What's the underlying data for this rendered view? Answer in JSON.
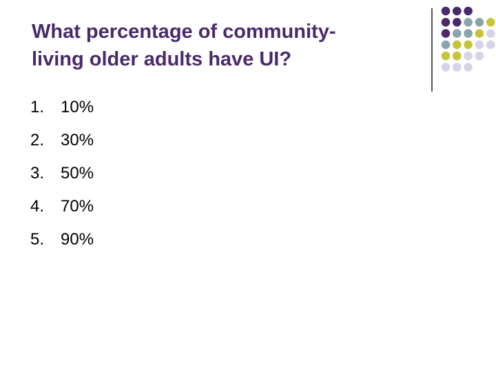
{
  "slide": {
    "title_lines": [
      "What percentage of community-",
      "living older adults have UI?"
    ],
    "answers": [
      {
        "number": "1.",
        "text": "10%"
      },
      {
        "number": "2.",
        "text": "30%"
      },
      {
        "number": "3.",
        "text": "50%"
      },
      {
        "number": "4.",
        "text": "70%"
      },
      {
        "number": "5.",
        "text": "90%"
      }
    ]
  },
  "decoration": {
    "palette": {
      "purple": "#4a2a6a",
      "teal": "#88a4ac",
      "olive": "#c6c53a",
      "lavender": "#d6d4e6"
    },
    "dot_rows": [
      [
        "purple",
        "purple",
        "purple",
        "",
        ""
      ],
      [
        "purple",
        "purple",
        "teal",
        "teal",
        "olive"
      ],
      [
        "purple",
        "teal",
        "teal",
        "olive",
        "lavender"
      ],
      [
        "teal",
        "olive",
        "olive",
        "lavender",
        "lavender"
      ],
      [
        "olive",
        "olive",
        "lavender",
        "lavender",
        ""
      ],
      [
        "lavender",
        "lavender",
        "lavender",
        "",
        ""
      ]
    ]
  }
}
